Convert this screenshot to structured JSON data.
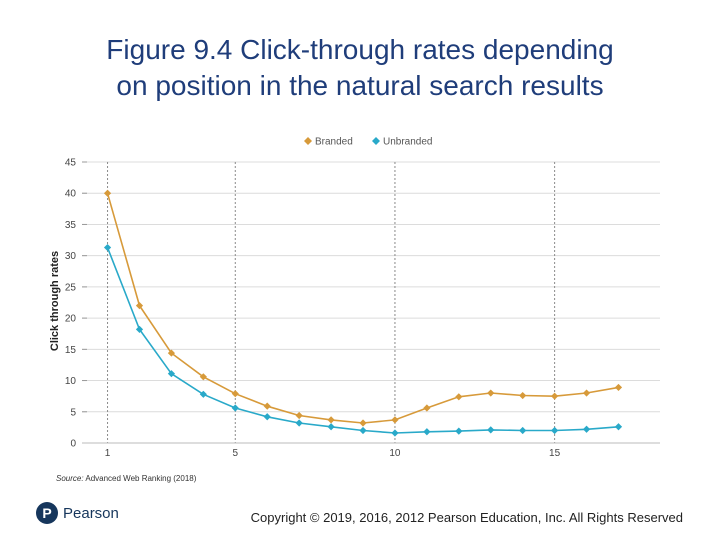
{
  "slide": {
    "title_line1": "Figure 9.4 Click-through rates depending",
    "title_line2": "on position in the natural search results",
    "source_prefix": "Source:",
    "source_text": "Advanced Web Ranking (2018)",
    "logo_mark": "P",
    "logo_text": "Pearson",
    "copyright": "Copyright © 2019, 2016, 2012 Pearson Education, Inc. All Rights Reserved"
  },
  "chart_data": {
    "type": "line",
    "title": "",
    "xlabel": "",
    "ylabel": "Click through rates",
    "x": [
      1,
      2,
      3,
      4,
      5,
      6,
      7,
      8,
      9,
      10,
      11,
      12,
      13,
      14,
      15,
      16,
      17
    ],
    "xlim": [
      0.2,
      18.3
    ],
    "xticks": [
      1,
      5,
      10,
      15
    ],
    "ylim": [
      0,
      45
    ],
    "yticks": [
      0,
      5,
      10,
      15,
      20,
      25,
      30,
      35,
      40,
      45
    ],
    "grid": true,
    "legend": "top-center",
    "series": [
      {
        "name": "Branded",
        "color": "#d79a3a",
        "marker": "diamond",
        "values": [
          40,
          22,
          14.4,
          10.6,
          7.9,
          5.9,
          4.4,
          3.7,
          3.2,
          3.7,
          5.6,
          7.4,
          8.0,
          7.6,
          7.5,
          8.0,
          8.9
        ]
      },
      {
        "name": "Unbranded",
        "color": "#29a9c9",
        "marker": "diamond",
        "values": [
          31.3,
          18.2,
          11.1,
          7.8,
          5.6,
          4.2,
          3.2,
          2.6,
          2.0,
          1.6,
          1.8,
          1.9,
          2.1,
          2.0,
          2.0,
          2.2,
          2.6
        ]
      }
    ]
  }
}
